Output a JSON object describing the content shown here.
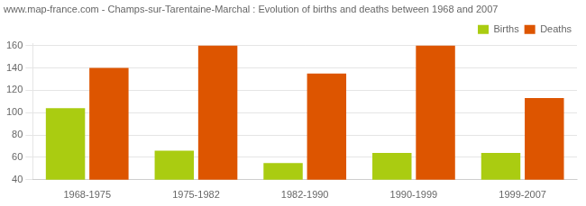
{
  "chart_data": {
    "type": "bar",
    "title": "www.map-france.com - Champs-sur-Tarentaine-Marchal : Evolution of births and deaths between 1968 and 2007",
    "categories": [
      "1968-1975",
      "1975-1982",
      "1982-1990",
      "1990-1999",
      "1999-2007"
    ],
    "series": [
      {
        "name": "Births",
        "color": "#aacc11",
        "values": [
          104,
          66,
          55,
          64,
          64
        ]
      },
      {
        "name": "Deaths",
        "color": "#dd5500",
        "values": [
          140,
          160,
          135,
          160,
          113
        ]
      }
    ],
    "ylim": [
      40,
      162
    ],
    "yticks": [
      40,
      60,
      80,
      100,
      120,
      140,
      160
    ],
    "grid": true,
    "legend": "upper right"
  }
}
